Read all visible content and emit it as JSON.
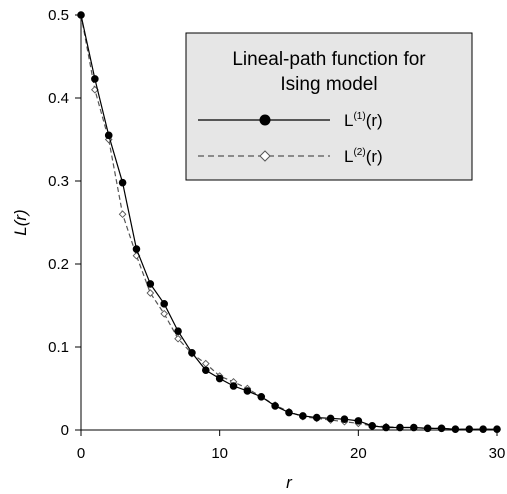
{
  "chart_data": {
    "type": "line",
    "title": "",
    "xlabel": "r",
    "ylabel": "L(r)",
    "xlim": [
      0,
      30
    ],
    "ylim": [
      0,
      0.5
    ],
    "xticks": [
      0,
      10,
      20,
      30
    ],
    "yticks": [
      0,
      0.1,
      0.2,
      0.3,
      0.4,
      0.5
    ],
    "xtick_labels": [
      "0",
      "10",
      "20",
      "30"
    ],
    "ytick_labels": [
      "0",
      "0.1",
      "0.2",
      "0.3",
      "0.4",
      "0.5"
    ],
    "grid": false,
    "legend": {
      "placement": "top-right",
      "title_lines": [
        "Lineal-path function for",
        "Ising model"
      ]
    },
    "series": [
      {
        "name_base": "L",
        "name_sup": "(1)",
        "name_suffix": "(r)",
        "line_style": "solid",
        "marker": "filled-circle",
        "color": "#000000",
        "x": [
          0,
          1,
          2,
          3,
          4,
          5,
          6,
          7,
          8,
          9,
          10,
          11,
          12,
          13,
          14,
          15,
          16,
          17,
          18,
          19,
          20,
          21,
          22,
          23,
          24,
          25,
          26,
          27,
          28,
          29,
          30
        ],
        "values": [
          0.5,
          0.423,
          0.355,
          0.298,
          0.218,
          0.176,
          0.152,
          0.119,
          0.093,
          0.072,
          0.062,
          0.053,
          0.047,
          0.04,
          0.029,
          0.021,
          0.017,
          0.015,
          0.014,
          0.013,
          0.011,
          0.005,
          0.003,
          0.003,
          0.003,
          0.002,
          0.002,
          0.001,
          0.001,
          0.001,
          0.001
        ]
      },
      {
        "name_base": "L",
        "name_sup": "(2)",
        "name_suffix": "(r)",
        "line_style": "dashed",
        "marker": "open-diamond",
        "color": "#555555",
        "x": [
          0,
          1,
          2,
          3,
          4,
          5,
          6,
          7,
          8,
          9,
          10,
          11,
          12,
          13,
          14,
          15,
          16,
          17,
          18,
          19,
          20,
          21,
          22,
          23,
          24,
          25,
          26,
          27,
          28,
          29,
          30
        ],
        "values": [
          0.5,
          0.41,
          0.35,
          0.26,
          0.21,
          0.165,
          0.14,
          0.11,
          0.092,
          0.08,
          0.065,
          0.058,
          0.05,
          0.04,
          0.03,
          0.022,
          0.016,
          0.014,
          0.012,
          0.01,
          0.008,
          0.005,
          0.004,
          0.003,
          0.003,
          0.002,
          0.002,
          0.001,
          0.001,
          0.001,
          0.001
        ]
      }
    ]
  }
}
